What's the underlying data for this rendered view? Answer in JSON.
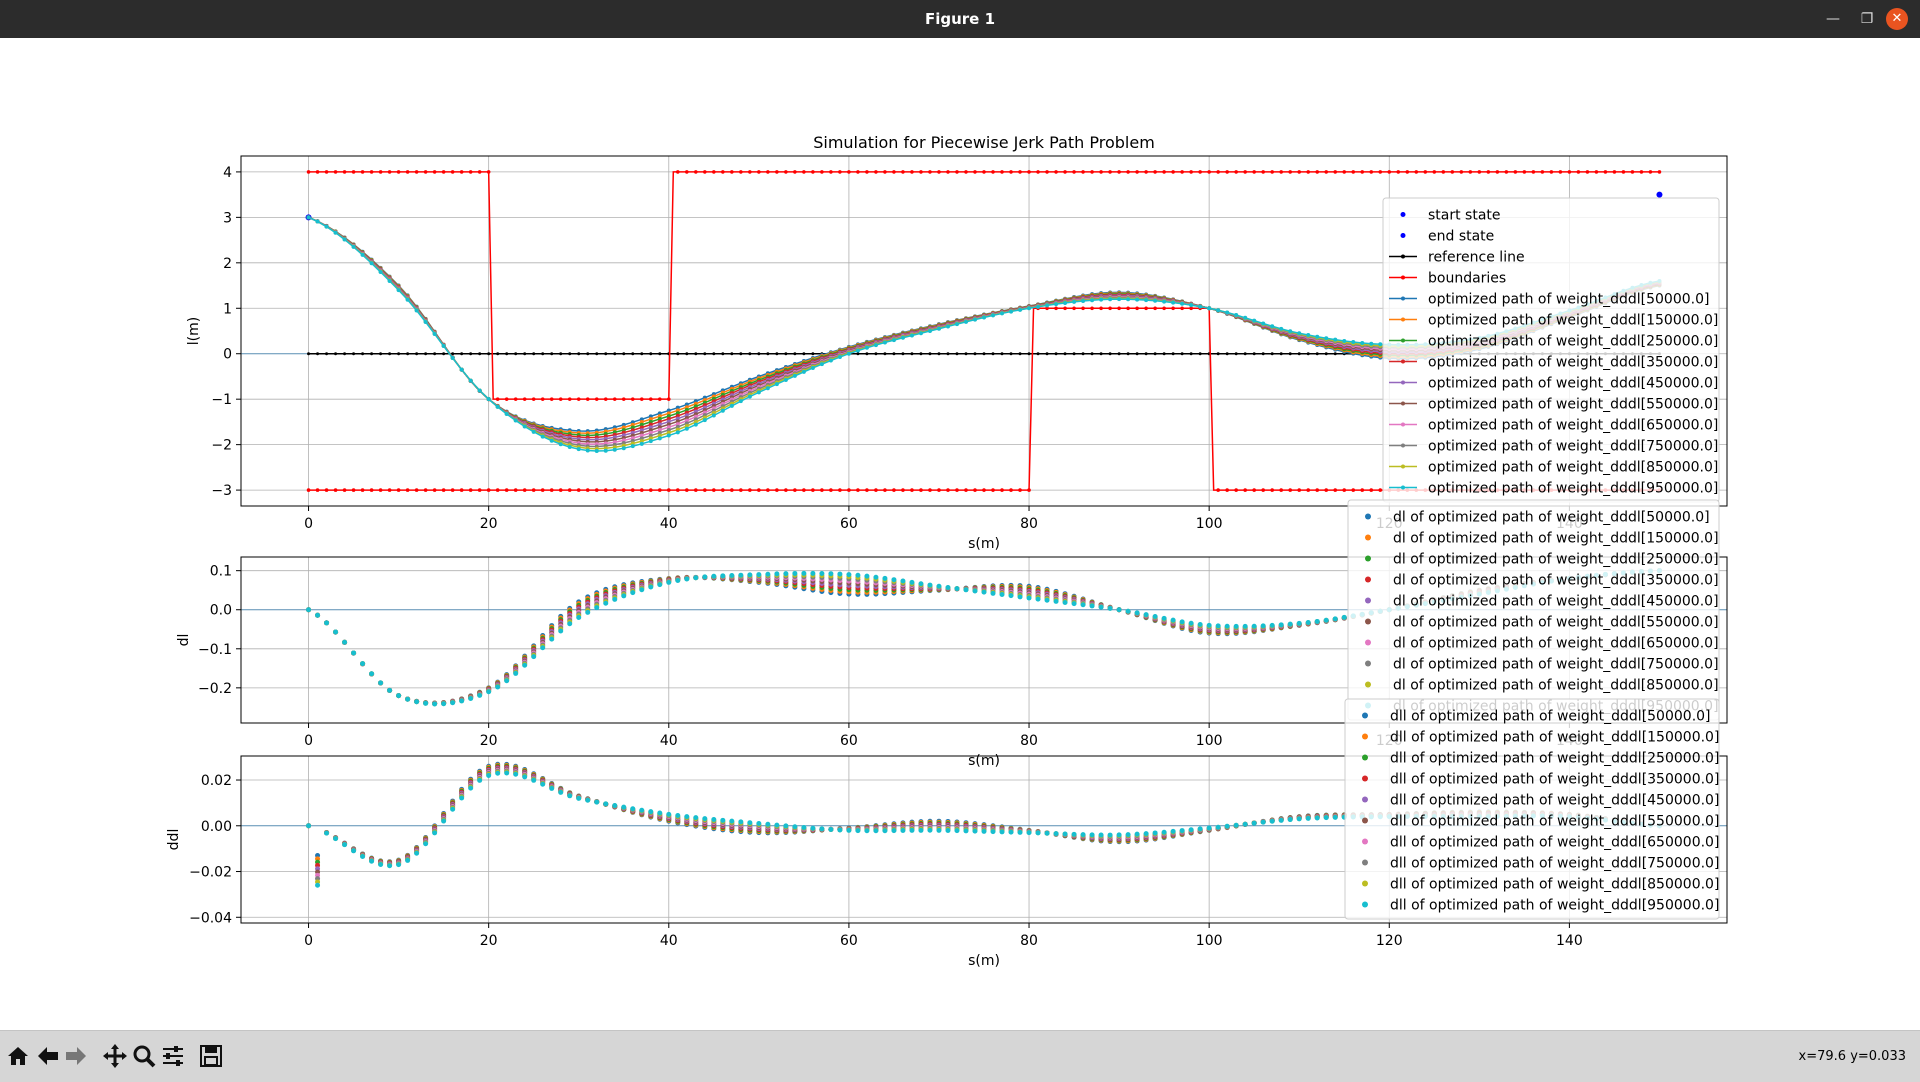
{
  "window": {
    "title": "Figure 1"
  },
  "toolbar": {
    "buttons": [
      {
        "icon": "home-icon"
      },
      {
        "icon": "back-arrow-icon"
      },
      {
        "icon": "forward-arrow-icon"
      },
      {
        "icon": "pan-icon"
      },
      {
        "icon": "zoom-icon"
      },
      {
        "icon": "configure-subplots-icon"
      },
      {
        "icon": "save-icon"
      }
    ],
    "coordinates": "x=79.6 y=0.033"
  },
  "colors": [
    "#1f77b4",
    "#ff7f0e",
    "#2ca02c",
    "#d62728",
    "#9467bd",
    "#8c564b",
    "#e377c2",
    "#7f7f7f",
    "#bcbd22",
    "#17becf"
  ],
  "chart_data": [
    {
      "type": "line",
      "title": "Simulation for Piecewise Jerk Path Problem",
      "xlabel": "s(m)",
      "ylabel": "l(m)",
      "xlim": [
        -7.5,
        157.5
      ],
      "ylim": [
        -3.35,
        4.35
      ],
      "xticks": [
        0,
        20,
        40,
        60,
        80,
        100,
        120,
        140
      ],
      "yticks": [
        -3,
        -2,
        -1,
        0,
        1,
        2,
        3,
        4
      ],
      "grid": true,
      "legend_position": "upper right",
      "start_state": {
        "s": 0,
        "l": 3.0
      },
      "end_state": {
        "s": 150,
        "l": 3.5
      },
      "reference_line": {
        "s_start": 0,
        "s_end": 150,
        "l": 0
      },
      "boundaries": {
        "upper": [
          [
            0,
            4
          ],
          [
            20,
            4
          ],
          [
            20.5,
            -1
          ],
          [
            40,
            -1
          ],
          [
            40.5,
            4
          ],
          [
            150,
            4
          ]
        ],
        "lower": [
          [
            0,
            -3
          ],
          [
            80,
            -3
          ],
          [
            80.5,
            1
          ],
          [
            100,
            1
          ],
          [
            100.5,
            -3
          ],
          [
            150,
            -3
          ]
        ]
      },
      "weights": [
        50000.0,
        150000.0,
        250000.0,
        350000.0,
        450000.0,
        550000.0,
        650000.0,
        750000.0,
        850000.0,
        950000.0
      ],
      "s": [
        0,
        10,
        20,
        30,
        40,
        50,
        60,
        70,
        80,
        90,
        100,
        110,
        120,
        130,
        140,
        150
      ],
      "series_path_min_weight": [
        3.0,
        1.5,
        -1.0,
        -1.7,
        -1.25,
        -0.5,
        0.15,
        0.65,
        1.05,
        1.35,
        1.0,
        0.3,
        -0.1,
        0.1,
        0.8,
        1.5
      ],
      "series_path_max_weight": [
        3.0,
        1.4,
        -1.0,
        -2.1,
        -1.8,
        -0.85,
        0.0,
        0.55,
        1.0,
        1.2,
        1.0,
        0.45,
        0.2,
        0.35,
        0.95,
        1.6
      ],
      "series_dl_min_weight": [
        0.0,
        -0.22,
        -0.2,
        0.02,
        0.08,
        0.07,
        0.04,
        0.05,
        0.06,
        0.0,
        -0.06,
        -0.04,
        0.0,
        0.05,
        0.08,
        0.1
      ],
      "series_dl_max_weight": [
        0.0,
        -0.22,
        -0.21,
        -0.02,
        0.07,
        0.09,
        0.09,
        0.06,
        0.03,
        0.0,
        -0.04,
        -0.035,
        0.0,
        0.04,
        0.08,
        0.1
      ],
      "series_ddl_min_weight": [
        0.0,
        -0.015,
        0.026,
        0.013,
        0.002,
        -0.003,
        -0.001,
        0.002,
        -0.002,
        -0.007,
        -0.002,
        0.004,
        0.005,
        0.006,
        0.005,
        0.0
      ],
      "series_ddl_max_weight": [
        0.0,
        -0.017,
        0.022,
        0.012,
        0.005,
        0.001,
        -0.002,
        -0.002,
        -0.003,
        -0.004,
        -0.001,
        0.003,
        0.004,
        0.004,
        0.004,
        0.0
      ],
      "legend": [
        "start state",
        "end state",
        "reference line",
        "boundaries",
        "optimized path of weight_dddl[50000.0]",
        "optimized path of weight_dddl[150000.0]",
        "optimized path of weight_dddl[250000.0]",
        "optimized path of weight_dddl[350000.0]",
        "optimized path of weight_dddl[450000.0]",
        "optimized path of weight_dddl[550000.0]",
        "optimized path of weight_dddl[650000.0]",
        "optimized path of weight_dddl[750000.0]",
        "optimized path of weight_dddl[850000.0]",
        "optimized path of weight_dddl[950000.0]"
      ]
    },
    {
      "type": "scatter",
      "xlabel": "s(m)",
      "ylabel": "dl",
      "xlim": [
        -7.5,
        157.5
      ],
      "ylim": [
        -0.29,
        0.135
      ],
      "xticks": [
        0,
        20,
        40,
        60,
        80,
        100,
        120,
        140
      ],
      "yticks": [
        -0.2,
        -0.1,
        0.0,
        0.1
      ],
      "ytick_labels": [
        "−0.2",
        "−0.1",
        "0.0",
        "0.1"
      ],
      "grid": true,
      "legend_position": "upper right",
      "legend": [
        "dl of optimized path of weight_dddl[50000.0]",
        "dl of optimized path of weight_dddl[150000.0]",
        "dl of optimized path of weight_dddl[250000.0]",
        "dl of optimized path of weight_dddl[350000.0]",
        "dl of optimized path of weight_dddl[450000.0]",
        "dl of optimized path of weight_dddl[550000.0]",
        "dl of optimized path of weight_dddl[650000.0]",
        "dl of optimized path of weight_dddl[750000.0]",
        "dl of optimized path of weight_dddl[850000.0]",
        "dl of optimized path of weight_dddl[950000.0]"
      ]
    },
    {
      "type": "scatter",
      "xlabel": "s(m)",
      "ylabel": "ddl",
      "xlim": [
        -7.5,
        157.5
      ],
      "ylim": [
        -0.0425,
        0.0305
      ],
      "xticks": [
        0,
        20,
        40,
        60,
        80,
        100,
        120,
        140
      ],
      "yticks": [
        -0.04,
        -0.02,
        0.0,
        0.02
      ],
      "ytick_labels": [
        "−0.04",
        "−0.02",
        "0.00",
        "0.02"
      ],
      "grid": true,
      "legend_position": "upper right",
      "legend": [
        "dll of optimized path of weight_dddl[50000.0]",
        "dll of optimized path of weight_dddl[150000.0]",
        "dll of optimized path of weight_dddl[250000.0]",
        "dll of optimized path of weight_dddl[350000.0]",
        "dll of optimized path of weight_dddl[450000.0]",
        "dll of optimized path of weight_dddl[550000.0]",
        "dll of optimized path of weight_dddl[650000.0]",
        "dll of optimized path of weight_dddl[750000.0]",
        "dll of optimized path of weight_dddl[850000.0]",
        "dll of optimized path of weight_dddl[950000.0]"
      ]
    }
  ]
}
